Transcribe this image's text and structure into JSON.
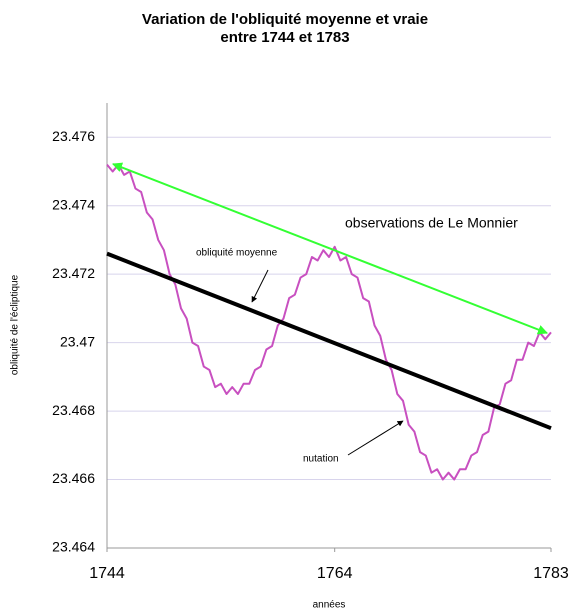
{
  "chart_data": {
    "type": "line",
    "title": [
      "Variation de l'obliquité moyenne et vraie",
      "entre 1744 et 1783"
    ],
    "xlabel": "années",
    "ylabel": "obliquité de l'écliptique",
    "annotations": [
      "observations de Le Monnier",
      "obliquité moyenne",
      "nutation"
    ],
    "xlim": [
      1744,
      1783
    ],
    "xticks": [
      1744,
      1764,
      1783
    ],
    "ylim": [
      23.464,
      23.477
    ],
    "yticks": [
      23.464,
      23.466,
      23.468,
      23.47,
      23.472,
      23.474,
      23.476
    ],
    "grid": true,
    "series": [
      {
        "color": "#c850c0",
        "x": [
          1744,
          1744.5,
          1745,
          1745.5,
          1746,
          1746.5,
          1747,
          1747.5,
          1748,
          1748.5,
          1749,
          1749.5,
          1750,
          1750.5,
          1751,
          1751.5,
          1752,
          1752.5,
          1753,
          1753.5,
          1754,
          1754.5,
          1755,
          1755.5,
          1756,
          1756.5,
          1757,
          1757.5,
          1758,
          1758.5,
          1759,
          1759.5,
          1760,
          1760.5,
          1761,
          1761.5,
          1762,
          1762.5,
          1763,
          1763.5,
          1764,
          1764.5,
          1765,
          1765.5,
          1766,
          1766.5,
          1767,
          1767.5,
          1768,
          1768.5,
          1769,
          1769.5,
          1770,
          1770.5,
          1771,
          1771.5,
          1772,
          1772.5,
          1773,
          1773.5,
          1774,
          1774.5,
          1775,
          1775.5,
          1776,
          1776.5,
          1777,
          1777.5,
          1778,
          1778.5,
          1779,
          1779.5,
          1780,
          1780.5,
          1781,
          1781.5,
          1782,
          1782.5,
          1783
        ],
        "values": [
          23.4752,
          23.475,
          23.4752,
          23.4749,
          23.475,
          23.4745,
          23.4744,
          23.4738,
          23.4736,
          23.473,
          23.4727,
          23.472,
          23.4717,
          23.471,
          23.4707,
          23.47,
          23.4699,
          23.4693,
          23.4692,
          23.4687,
          23.4688,
          23.4685,
          23.4687,
          23.4685,
          23.4688,
          23.4688,
          23.4692,
          23.4693,
          23.4698,
          23.4699,
          23.4705,
          23.4707,
          23.4713,
          23.4714,
          23.4719,
          23.472,
          23.4725,
          23.4724,
          23.4727,
          23.4725,
          23.4728,
          23.4724,
          23.4725,
          23.472,
          23.4719,
          23.4713,
          23.4712,
          23.4705,
          23.4702,
          23.4695,
          23.4692,
          23.4685,
          23.4683,
          23.4676,
          23.4674,
          23.4668,
          23.4667,
          23.4662,
          23.4663,
          23.466,
          23.4662,
          23.466,
          23.4663,
          23.4663,
          23.4667,
          23.4668,
          23.4673,
          23.4674,
          23.4681,
          23.4682,
          23.4688,
          23.4689,
          23.4695,
          23.4695,
          23.47,
          23.4699,
          23.4703,
          23.4701,
          23.4703
        ]
      },
      {
        "color": "#000000",
        "x": [
          1744,
          1783
        ],
        "values": [
          23.4726,
          23.4675
        ]
      }
    ]
  }
}
